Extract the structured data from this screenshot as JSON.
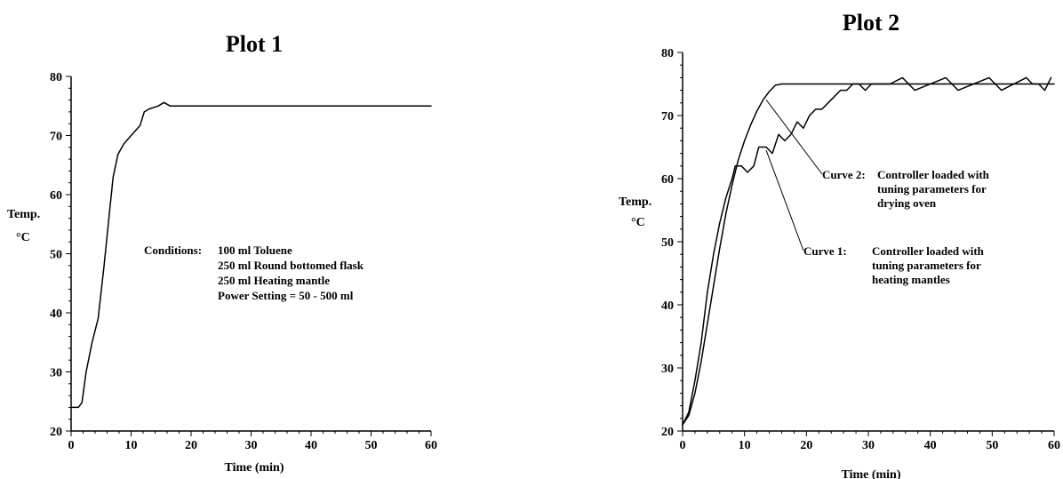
{
  "chart_data": [
    {
      "type": "line",
      "title": "Plot 1",
      "xlabel": "Time (min)",
      "ylabel": "Temp.",
      "ylabel_unit": "°C",
      "xlim": [
        0,
        60
      ],
      "ylim": [
        20,
        80
      ],
      "x_ticks": [
        0,
        10,
        20,
        30,
        40,
        50,
        60
      ],
      "y_ticks": [
        20,
        30,
        40,
        50,
        60,
        70,
        80
      ],
      "grid": false,
      "annotations": [
        {
          "label": "Conditions:",
          "lines": [
            "100 ml Toluene",
            "250 ml Round bottomed flask",
            "250 ml Heating mantle",
            "Power Setting = 50 - 500 ml"
          ]
        }
      ],
      "series": [
        {
          "x": [
            0,
            1.2,
            1.8,
            2.5,
            3.5,
            4.5,
            5.5,
            6.3,
            7,
            7.8,
            8.8,
            10,
            11.5,
            12.2,
            13,
            14.5,
            15.5,
            16,
            16.5,
            20,
            30,
            40,
            50,
            60
          ],
          "y": [
            24,
            24,
            24.8,
            30,
            35,
            39,
            48,
            56,
            63,
            66.8,
            68.6,
            70,
            71.7,
            74,
            74.5,
            75,
            75.6,
            75.3,
            75,
            75,
            75,
            75,
            75,
            75
          ]
        }
      ]
    },
    {
      "type": "line",
      "title": "Plot 2",
      "xlabel": "Time (min)",
      "ylabel": "Temp.",
      "ylabel_unit": "°C",
      "xlim": [
        0,
        60
      ],
      "ylim": [
        20,
        80
      ],
      "x_ticks": [
        0,
        10,
        20,
        30,
        40,
        50,
        60
      ],
      "y_ticks": [
        20,
        30,
        40,
        50,
        60,
        70,
        80
      ],
      "grid": false,
      "annotations": [
        {
          "label": "Curve 2:",
          "lines": [
            "Controller loaded with",
            "tuning parameters for",
            "drying oven"
          ],
          "target": [
            13.5,
            72.5
          ]
        },
        {
          "label": "Curve 1:",
          "lines": [
            "Controller loaded with",
            "tuning parameters for",
            "heating mantles"
          ],
          "target": [
            13.5,
            64.5
          ]
        }
      ],
      "series": [
        {
          "name": "Curve 2",
          "x": [
            0,
            1,
            2,
            3,
            4,
            5,
            6,
            7,
            8,
            9,
            10,
            11,
            12,
            13,
            14,
            15,
            16,
            20,
            30,
            40,
            50,
            60
          ],
          "y": [
            21,
            22.5,
            26,
            31,
            37,
            43,
            49,
            54.5,
            59,
            63,
            66,
            68.5,
            70.7,
            72.5,
            73.8,
            74.8,
            75,
            75,
            75,
            75,
            75,
            75
          ]
        },
        {
          "name": "Curve 1",
          "x": [
            0,
            1,
            2,
            3,
            4,
            5,
            6,
            7,
            8,
            8.5,
            9.5,
            10.5,
            11.5,
            12.3,
            13.5,
            14.5,
            15.5,
            16.5,
            17.5,
            18.5,
            19.5,
            20.5,
            21.5,
            22.5,
            23.5,
            24.5,
            25.5,
            26.5,
            27.5,
            28.5,
            29.5,
            30.5,
            31.5,
            33.5,
            35.5,
            37.5,
            42.5,
            44.5,
            49.5,
            51.5,
            55.5,
            56.5,
            57.5,
            58.5,
            59.5
          ],
          "y": [
            21,
            23,
            28,
            34,
            42,
            48,
            53,
            57,
            60,
            62,
            62,
            61,
            62,
            65,
            65,
            64,
            67,
            66,
            67,
            69,
            68,
            70,
            71,
            71,
            72,
            73,
            74,
            74,
            75,
            75,
            74,
            75,
            75,
            75,
            76,
            74,
            76,
            74,
            76,
            74,
            76,
            75,
            75,
            74,
            76
          ]
        }
      ]
    }
  ]
}
